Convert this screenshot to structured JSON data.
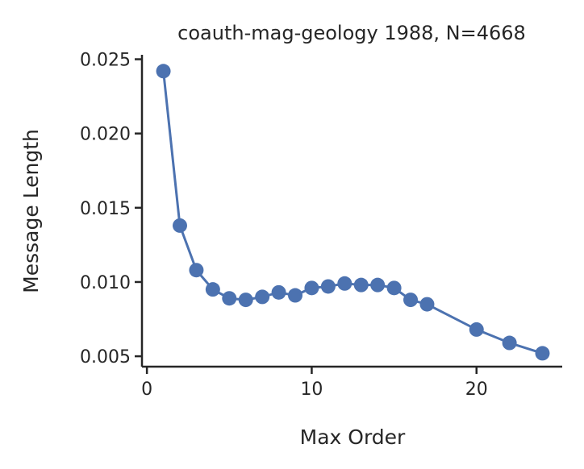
{
  "chart_data": {
    "type": "line",
    "title": "coauth-mag-geology 1988, N=4668",
    "xlabel": "Max Order",
    "ylabel": "Message Length",
    "xlim": [
      -0.3,
      25.2
    ],
    "ylim": [
      0.0043,
      0.0253
    ],
    "xticks": [
      0,
      10,
      20
    ],
    "xtick_labels": [
      "0",
      "10",
      "20"
    ],
    "yticks": [
      0.005,
      0.01,
      0.015,
      0.02,
      0.025
    ],
    "ytick_labels": [
      "0.005",
      "0.010",
      "0.015",
      "0.020",
      "0.025"
    ],
    "grid": false,
    "legend": "none",
    "series": [
      {
        "color": "#4C72B0",
        "x": [
          1,
          2,
          3,
          4,
          5,
          6,
          7,
          8,
          9,
          10,
          11,
          12,
          13,
          14,
          15,
          16,
          17,
          20,
          22,
          24
        ],
        "y": [
          0.0242,
          0.0138,
          0.0108,
          0.0095,
          0.0089,
          0.0088,
          0.009,
          0.0093,
          0.0091,
          0.0096,
          0.0097,
          0.0099,
          0.0098,
          0.0098,
          0.0096,
          0.0088,
          0.0085,
          0.0068,
          0.0059,
          0.0052
        ]
      }
    ]
  }
}
